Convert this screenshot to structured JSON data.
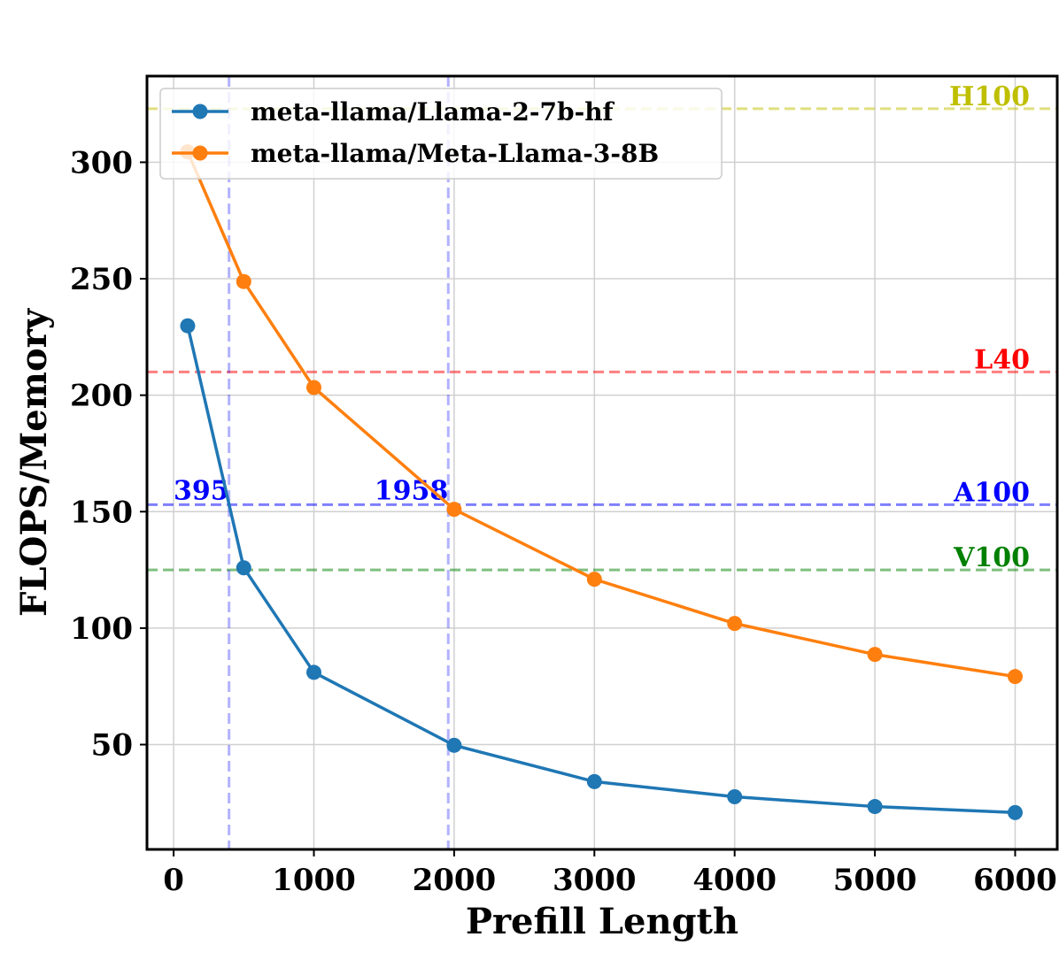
{
  "chart_data": {
    "type": "line",
    "title": "",
    "xlabel": "Prefill Length",
    "ylabel": "FLOPS/Memory",
    "xlim": [
      -190,
      6300
    ],
    "ylim": [
      5,
      337
    ],
    "xticks": [
      0,
      1000,
      2000,
      3000,
      4000,
      5000,
      6000
    ],
    "yticks": [
      50,
      100,
      150,
      200,
      250,
      300
    ],
    "grid": true,
    "legend_position": "top-left",
    "x": [
      100,
      500,
      1000,
      2000,
      3000,
      4000,
      5000,
      6000
    ],
    "series": [
      {
        "name": "meta-llama/Llama-2-7b-hf",
        "color": "#1f77b4",
        "values": [
          229.8,
          125.9,
          81,
          49.7,
          34.1,
          27.6,
          23.4,
          20.8
        ]
      },
      {
        "name": "meta-llama/Meta-Llama-3-8B",
        "color": "#ff7f0e",
        "values": [
          304.5,
          248.8,
          203.3,
          151,
          121,
          102,
          88.7,
          79.2
        ]
      }
    ],
    "hlines": [
      {
        "label": "H100",
        "value": 323,
        "color": "#bfbf00"
      },
      {
        "label": "L40",
        "value": 210,
        "color": "#ff0000"
      },
      {
        "label": "A100",
        "value": 153,
        "color": "#0000ff"
      },
      {
        "label": "V100",
        "value": 125,
        "color": "#008000"
      }
    ],
    "vlines": [
      {
        "label": "395",
        "value": 395,
        "color": "#0000ff"
      },
      {
        "label": "1958",
        "value": 1958,
        "color": "#0000ff"
      }
    ]
  }
}
